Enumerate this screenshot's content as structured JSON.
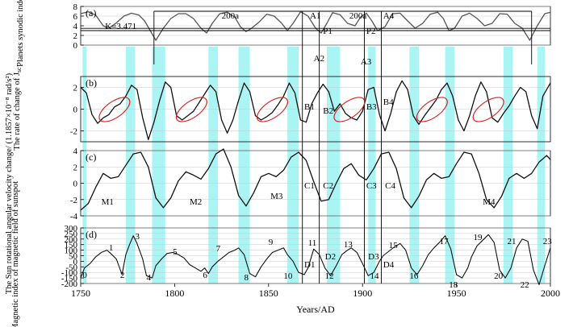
{
  "chart_data": [
    {
      "type": "line",
      "panel_label": "(a)",
      "ylabel": "Planets synodic index K",
      "ylim": [
        0,
        8
      ],
      "yticks": [
        0,
        2,
        4,
        6,
        8
      ],
      "series": [
        {
          "name": "K",
          "x": [
            1750,
            1754,
            1758,
            1762,
            1765,
            1769,
            1773,
            1777,
            1781,
            1784,
            1787,
            1790,
            1794,
            1798,
            1802,
            1806,
            1810,
            1814,
            1817,
            1820,
            1824,
            1828,
            1832,
            1835,
            1838,
            1841,
            1845,
            1849,
            1853,
            1857,
            1860,
            1863,
            1867,
            1871,
            1875,
            1878,
            1881,
            1884,
            1888,
            1892,
            1896,
            1899,
            1902,
            1905,
            1908,
            1912,
            1916,
            1920,
            1924,
            1928,
            1932,
            1936,
            1940,
            1943,
            1946,
            1949,
            1953,
            1957,
            1961,
            1965,
            1969,
            1973,
            1977,
            1981,
            1985,
            1989,
            1993,
            1997,
            2000
          ],
          "y": [
            6.5,
            6.9,
            6.2,
            4.0,
            3.47,
            4.6,
            6.0,
            6.6,
            6.2,
            5.0,
            3.0,
            1.0,
            3.5,
            5.5,
            6.5,
            6.5,
            5.5,
            3.5,
            2.5,
            4.5,
            6.5,
            6.8,
            5.8,
            3.8,
            2.8,
            3.5,
            4.8,
            6.4,
            6.0,
            4.5,
            3.0,
            4.5,
            6.9,
            6.0,
            3.5,
            2.5,
            4.5,
            6.7,
            6.3,
            4.5,
            4.0,
            5.8,
            6.6,
            5.0,
            3.0,
            3.8,
            6.5,
            6.6,
            5.0,
            3.5,
            4.5,
            6.4,
            6.8,
            5.5,
            3.0,
            3.5,
            6.0,
            6.6,
            5.5,
            4.0,
            4.5,
            6.5,
            6.4,
            4.5,
            3.5,
            1.0,
            4.0,
            6.5,
            6.8
          ]
        }
      ],
      "horizontal_lines": [
        3.47,
        3.0
      ],
      "annotations": [
        "K=3.471",
        "200a",
        "200a",
        "A1",
        "A2",
        "A3",
        "A4",
        "P1",
        "P2"
      ]
    },
    {
      "type": "line",
      "panel_label": "(b)",
      "ylabel": "The rate of change of J",
      "ylabel_sub": "sc",
      "ylim": [
        -3,
        3
      ],
      "yticks": [
        -2,
        0,
        2
      ],
      "series": [
        {
          "name": "dJsc/dt",
          "x": [
            1750,
            1753,
            1756,
            1759,
            1762,
            1765,
            1768,
            1771,
            1774,
            1777,
            1780,
            1783,
            1786,
            1789,
            1792,
            1795,
            1798,
            1801,
            1804,
            1807,
            1810,
            1813,
            1816,
            1819,
            1822,
            1825,
            1828,
            1831,
            1834,
            1837,
            1840,
            1843,
            1846,
            1849,
            1852,
            1855,
            1858,
            1861,
            1864,
            1867,
            1870,
            1873,
            1876,
            1879,
            1882,
            1885,
            1888,
            1891,
            1894,
            1897,
            1900,
            1903,
            1906,
            1909,
            1912,
            1915,
            1918,
            1921,
            1924,
            1927,
            1930,
            1933,
            1936,
            1939,
            1942,
            1945,
            1948,
            1951,
            1954,
            1957,
            1960,
            1963,
            1966,
            1969,
            1972,
            1975,
            1978,
            1981,
            1984,
            1987,
            1990,
            1993,
            1996,
            2000
          ],
          "y": [
            2.0,
            1.5,
            -0.5,
            -1.3,
            -0.8,
            -0.5,
            0.2,
            0.5,
            1.2,
            2.2,
            1.8,
            -0.8,
            -2.8,
            -1.2,
            0.8,
            2.5,
            2.0,
            -0.6,
            -1.0,
            -0.6,
            -0.2,
            0.6,
            1.4,
            2.2,
            1.6,
            -1.0,
            -2.2,
            -1.0,
            0.8,
            2.4,
            1.6,
            -0.6,
            -1.0,
            -0.7,
            -0.3,
            0.4,
            1.2,
            2.4,
            1.5,
            -1.0,
            -1.2,
            0.5,
            1.5,
            2.3,
            1.6,
            -0.2,
            0.5,
            -0.4,
            -0.8,
            -1.0,
            -0.2,
            1.8,
            2.0,
            -0.5,
            -2.0,
            -0.4,
            1.6,
            2.6,
            1.8,
            -0.6,
            -1.4,
            -0.6,
            0.1,
            0.8,
            1.8,
            2.4,
            1.2,
            -1.0,
            -2.0,
            -0.6,
            1.2,
            2.5,
            1.6,
            -0.8,
            -1.2,
            -0.4,
            0.3,
            1.2,
            2.0,
            1.6,
            -0.6,
            -1.8,
            1.2,
            2.4
          ]
        }
      ],
      "annotations": [
        "B1",
        "B2",
        "B3",
        "B4"
      ]
    },
    {
      "type": "line",
      "panel_label": "(c)",
      "ylabel": "The Sun rotational angular velocity change/ (1.1857×10⁻⁸ rad/s²)",
      "ylim": [
        -4,
        4
      ],
      "yticks": [
        -4,
        -2,
        0,
        2,
        4
      ],
      "series": [
        {
          "name": "angular velocity change",
          "x": [
            1750,
            1754,
            1758,
            1762,
            1766,
            1770,
            1774,
            1778,
            1782,
            1786,
            1790,
            1794,
            1798,
            1802,
            1806,
            1810,
            1814,
            1818,
            1822,
            1826,
            1830,
            1834,
            1838,
            1842,
            1846,
            1850,
            1854,
            1858,
            1862,
            1866,
            1870,
            1874,
            1878,
            1882,
            1886,
            1890,
            1894,
            1898,
            1902,
            1906,
            1910,
            1914,
            1918,
            1922,
            1926,
            1930,
            1934,
            1938,
            1942,
            1946,
            1950,
            1954,
            1958,
            1962,
            1966,
            1970,
            1974,
            1978,
            1982,
            1986,
            1990,
            1994,
            1998,
            2000
          ],
          "y": [
            -3.3,
            -2.5,
            -0.5,
            1.2,
            0.6,
            0.8,
            2.2,
            3.6,
            3.8,
            2.0,
            -1.8,
            -3.0,
            -1.8,
            0.3,
            1.4,
            1.0,
            0.5,
            1.8,
            3.6,
            4.2,
            2.0,
            -1.5,
            -2.8,
            -1.2,
            0.8,
            1.2,
            0.8,
            1.6,
            3.2,
            3.8,
            2.8,
            0.2,
            -2.2,
            -2.0,
            0.0,
            1.8,
            2.4,
            1.0,
            0.4,
            1.8,
            3.6,
            3.8,
            1.8,
            -1.8,
            -3.0,
            -1.6,
            0.4,
            1.2,
            0.6,
            0.8,
            2.4,
            3.8,
            3.6,
            1.2,
            -2.0,
            -3.0,
            -1.6,
            0.6,
            1.2,
            0.6,
            1.2,
            2.6,
            3.4,
            2.9
          ]
        }
      ],
      "annotations": [
        "M1",
        "M2",
        "M3",
        "M4",
        "C1",
        "C2",
        "C3",
        "C4"
      ]
    },
    {
      "type": "line",
      "panel_label": "(d)",
      "ylabel": "Magnetic index of magnetic field of sunspot",
      "ylim": [
        -200,
        300
      ],
      "yticks": [
        -200,
        -150,
        -100,
        -50,
        0,
        50,
        100,
        150,
        200,
        250,
        300
      ],
      "xlabel": "Years/AD",
      "xlim": [
        1750,
        2000
      ],
      "xticks": [
        1750,
        1800,
        1850,
        1900,
        1950,
        2000
      ],
      "series": [
        {
          "name": "magnetic index",
          "x": [
            1750,
            1752,
            1755,
            1758,
            1761,
            1764,
            1766,
            1769,
            1772,
            1774,
            1776,
            1778,
            1780,
            1783,
            1785,
            1788,
            1790,
            1793,
            1796,
            1799,
            1802,
            1805,
            1808,
            1811,
            1814,
            1816,
            1818,
            1820,
            1823,
            1826,
            1829,
            1832,
            1834,
            1837,
            1840,
            1843,
            1846,
            1849,
            1852,
            1855,
            1858,
            1860,
            1863,
            1866,
            1869,
            1871,
            1874,
            1877,
            1880,
            1883,
            1886,
            1889,
            1892,
            1894,
            1897,
            1900,
            1903,
            1906,
            1909,
            1911,
            1914,
            1917,
            1920,
            1923,
            1926,
            1929,
            1932,
            1935,
            1938,
            1941,
            1944,
            1947,
            1950,
            1953,
            1956,
            1958,
            1961,
            1964,
            1967,
            1970,
            1973,
            1976,
            1979,
            1982,
            1985,
            1988,
            1991,
            1994,
            1997,
            2000
          ],
          "y": [
            -150,
            -60,
            -20,
            40,
            80,
            100,
            70,
            20,
            -120,
            60,
            150,
            230,
            160,
            20,
            -130,
            -150,
            -40,
            20,
            70,
            80,
            60,
            30,
            -30,
            -60,
            -90,
            -60,
            -110,
            -50,
            0,
            40,
            80,
            100,
            120,
            60,
            -110,
            -140,
            -50,
            20,
            80,
            100,
            120,
            60,
            0,
            -100,
            -120,
            -60,
            110,
            60,
            -60,
            -130,
            -40,
            60,
            100,
            120,
            80,
            -20,
            -130,
            -100,
            0,
            50,
            90,
            130,
            160,
            100,
            -60,
            -120,
            -40,
            60,
            120,
            170,
            230,
            110,
            -120,
            -150,
            -60,
            40,
            140,
            190,
            240,
            170,
            -80,
            -150,
            -60,
            120,
            200,
            180,
            -80,
            -210,
            -40,
            120
          ]
        }
      ],
      "cycle_labels": [
        "0",
        "1",
        "2",
        "3",
        "4",
        "5",
        "6",
        "7",
        "8",
        "9",
        "10",
        "11",
        "12",
        "13",
        "14",
        "15",
        "16",
        "17",
        "18",
        "19",
        "20",
        "21",
        "22",
        "23"
      ],
      "annotations": [
        "D1",
        "D2",
        "D3",
        "D4"
      ]
    }
  ],
  "shaded_intervals": [
    [
      1751,
      1753
    ],
    [
      1774,
      1779
    ],
    [
      1788,
      1795
    ],
    [
      1818,
      1823
    ],
    [
      1834,
      1840
    ],
    [
      1860,
      1866
    ],
    [
      1881,
      1888
    ],
    [
      1903,
      1907
    ],
    [
      1925,
      1930
    ],
    [
      1944,
      1949
    ],
    [
      1975,
      1980
    ],
    [
      1993,
      1997
    ]
  ],
  "vertical_markers": [
    1868,
    1877,
    1901,
    1910
  ],
  "ellipse_centres_years": [
    1768,
    1809,
    1852,
    1893,
    1937,
    1967
  ]
}
